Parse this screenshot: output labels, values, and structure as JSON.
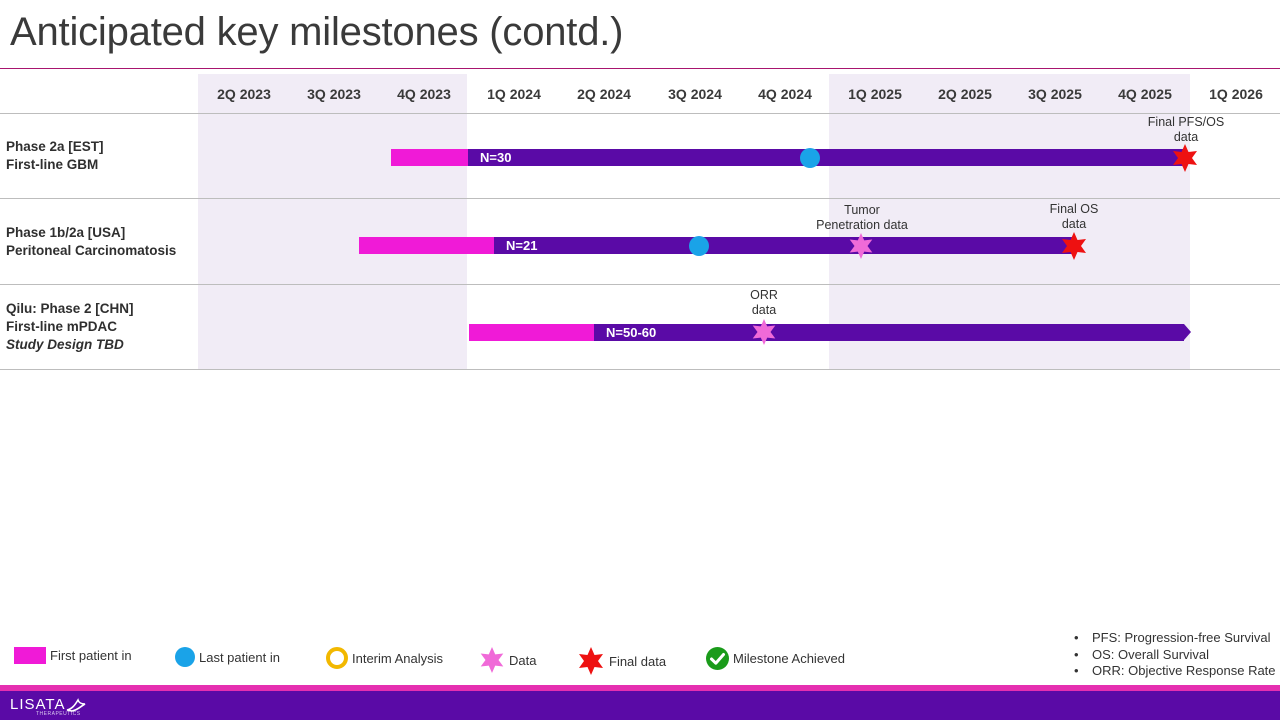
{
  "title": "Anticipated key milestones (contd.)",
  "quarters": [
    "2Q 2023",
    "3Q 2023",
    "4Q 2023",
    "1Q 2024",
    "2Q 2024",
    "3Q 2024",
    "4Q 2024",
    "1Q 2025",
    "2Q 2025",
    "3Q 2025",
    "4Q 2025",
    "1Q 2026"
  ],
  "rows": [
    {
      "label_lines": [
        "Phase 2a [EST]",
        "First-line GBM"
      ],
      "n_label": "N=30",
      "notes": [
        {
          "text_lines": [
            "Final PFS/OS",
            "data"
          ]
        }
      ]
    },
    {
      "label_lines": [
        "Phase 1b/2a [USA]",
        "Peritoneal Carcinomatosis"
      ],
      "n_label": "N=21",
      "notes": [
        {
          "text_lines": [
            "Tumor",
            "Penetration data"
          ]
        },
        {
          "text_lines": [
            "Final OS",
            "data"
          ]
        }
      ]
    },
    {
      "label_lines": [
        "Qilu: Phase 2 [CHN]",
        "First-line mPDAC"
      ],
      "label_italic": "Study Design TBD",
      "n_label": "N=50-60",
      "notes": [
        {
          "text_lines": [
            "ORR",
            "data"
          ]
        }
      ]
    }
  ],
  "legend": {
    "first_patient": "First patient in",
    "last_patient": "Last patient in",
    "interim": "Interim Analysis",
    "data": "Data",
    "final": "Final data",
    "achieved": "Milestone Achieved"
  },
  "abbreviations": [
    "PFS: Progression-free Survival",
    "OS: Overall Survival",
    "ORR: Objective Response Rate"
  ],
  "logo": {
    "name": "LISATA",
    "sub": "THERAPEUTICS"
  },
  "colors": {
    "first_patient": "#f01ad7",
    "ongoing": "#5a0aa6",
    "last_patient": "#1aa3e8",
    "data": "#f06ad8",
    "final": "#ee1111",
    "interim": "#f2b800",
    "achieved": "#1a9b1a"
  }
}
